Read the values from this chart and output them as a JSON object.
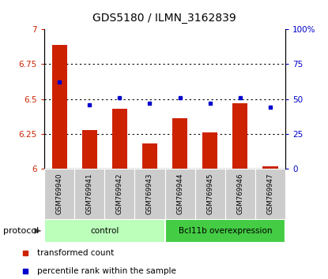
{
  "title": "GDS5180 / ILMN_3162839",
  "samples": [
    "GSM769940",
    "GSM769941",
    "GSM769942",
    "GSM769943",
    "GSM769944",
    "GSM769945",
    "GSM769946",
    "GSM769947"
  ],
  "transformed_counts": [
    6.89,
    6.28,
    6.43,
    6.18,
    6.36,
    6.26,
    6.47,
    6.02
  ],
  "percentile_ranks": [
    62,
    46,
    51,
    47,
    51,
    47,
    51,
    44
  ],
  "ylim_left": [
    6.0,
    7.0
  ],
  "ylim_right": [
    0,
    100
  ],
  "yticks_left": [
    6.0,
    6.25,
    6.5,
    6.75,
    7.0
  ],
  "yticks_right": [
    0,
    25,
    50,
    75,
    100
  ],
  "ytick_labels_left": [
    "6",
    "6.25",
    "6.5",
    "6.75",
    "7"
  ],
  "ytick_labels_right": [
    "0",
    "25",
    "50",
    "75",
    "100%"
  ],
  "bar_color": "#cc2200",
  "dot_color": "#0000cc",
  "bar_bottom": 6.0,
  "groups": [
    {
      "label": "control",
      "indices": [
        0,
        1,
        2,
        3
      ],
      "color": "#bbffbb"
    },
    {
      "label": "Bcl11b overexpression",
      "indices": [
        4,
        5,
        6,
        7
      ],
      "color": "#44cc44"
    }
  ],
  "protocol_label": "protocol",
  "legend_items": [
    {
      "label": "transformed count",
      "color": "#cc2200"
    },
    {
      "label": "percentile rank within the sample",
      "color": "#0000cc"
    }
  ],
  "sample_box_color": "#cccccc",
  "sample_box_edge_color": "#ffffff"
}
